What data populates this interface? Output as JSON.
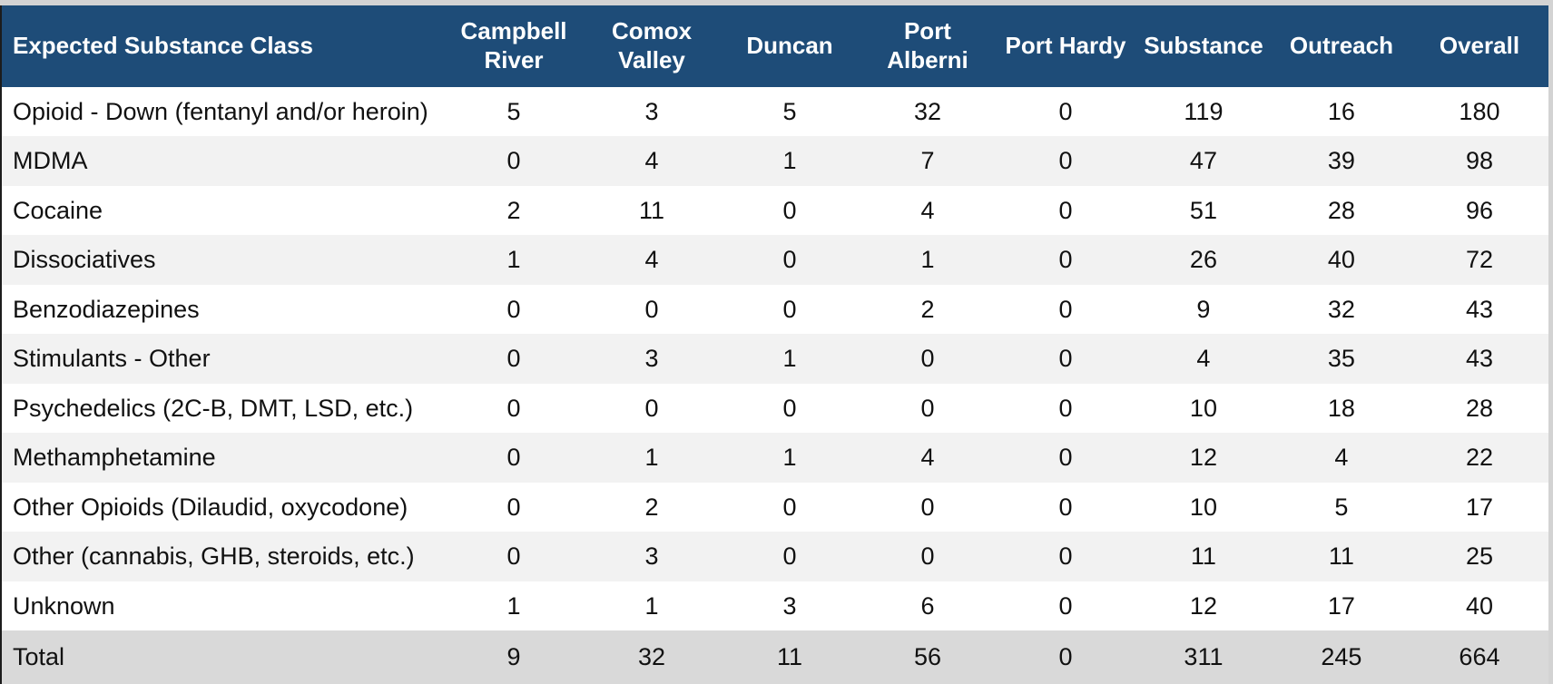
{
  "colors": {
    "header_bg": "#1E4C78",
    "header_text": "#FFFFFF",
    "row_bg": "#FFFFFF",
    "row_alt_bg": "#F2F2F2",
    "total_bg": "#D9D9D9",
    "page_margin": "#D3D3D3",
    "left_edge": "#1C1C1C",
    "body_text": "#111111"
  },
  "chart_data": {
    "type": "table",
    "title": "",
    "columns": [
      "Expected Substance Class",
      "Campbell River",
      "Comox Valley",
      "Duncan",
      "Port Alberni",
      "Port Hardy",
      "Substance",
      "Outreach",
      "Overall"
    ],
    "rows": [
      {
        "label": "Opioid - Down (fentanyl and/or heroin)",
        "values": [
          5,
          3,
          5,
          32,
          0,
          119,
          16,
          180
        ]
      },
      {
        "label": "MDMA",
        "values": [
          0,
          4,
          1,
          7,
          0,
          47,
          39,
          98
        ]
      },
      {
        "label": "Cocaine",
        "values": [
          2,
          11,
          0,
          4,
          0,
          51,
          28,
          96
        ]
      },
      {
        "label": "Dissociatives",
        "values": [
          1,
          4,
          0,
          1,
          0,
          26,
          40,
          72
        ]
      },
      {
        "label": "Benzodiazepines",
        "values": [
          0,
          0,
          0,
          2,
          0,
          9,
          32,
          43
        ]
      },
      {
        "label": "Stimulants - Other",
        "values": [
          0,
          3,
          1,
          0,
          0,
          4,
          35,
          43
        ]
      },
      {
        "label": "Psychedelics (2C-B, DMT, LSD, etc.)",
        "values": [
          0,
          0,
          0,
          0,
          0,
          10,
          18,
          28
        ]
      },
      {
        "label": "Methamphetamine",
        "values": [
          0,
          1,
          1,
          4,
          0,
          12,
          4,
          22
        ]
      },
      {
        "label": "Other Opioids (Dilaudid, oxycodone)",
        "values": [
          0,
          2,
          0,
          0,
          0,
          10,
          5,
          17
        ]
      },
      {
        "label": "Other (cannabis, GHB, steroids, etc.)",
        "values": [
          0,
          3,
          0,
          0,
          0,
          11,
          11,
          25
        ]
      },
      {
        "label": "Unknown",
        "values": [
          1,
          1,
          3,
          6,
          0,
          12,
          17,
          40
        ]
      }
    ],
    "total_row": {
      "label": "Total",
      "values": [
        9,
        32,
        11,
        56,
        0,
        311,
        245,
        664
      ]
    },
    "layout": {
      "zebra_striping": true,
      "header_style": "dark-blue band, white bold text, multi-line wrapped city names",
      "first_column_align": "left",
      "value_columns_align": "center"
    }
  }
}
